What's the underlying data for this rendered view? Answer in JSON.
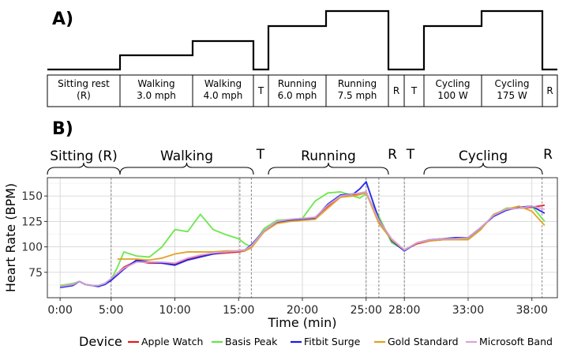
{
  "panel_a": {
    "label": "A)",
    "stages": [
      "Sitting rest\n(R)",
      "Walking\n3.0 mph",
      "Walking\n4.0 mph",
      "T",
      "Running\n6.0 mph",
      "Running\n7.5 mph",
      "R",
      "T",
      "Cycling\n100 W",
      "Cycling\n175 W",
      "R"
    ],
    "intensity_levels": [
      0,
      1,
      2,
      0,
      3,
      4,
      0,
      0,
      3,
      4,
      0
    ]
  },
  "panel_b": {
    "label": "B)",
    "phases": [
      {
        "label": "Sitting (R)",
        "brace": true
      },
      {
        "label": "Walking",
        "brace": true
      },
      {
        "label": "T",
        "brace": false
      },
      {
        "label": "Running",
        "brace": true
      },
      {
        "label": "R",
        "brace": false
      },
      {
        "label": "T",
        "brace": false
      },
      {
        "label": "Cycling",
        "brace": true
      },
      {
        "label": "R",
        "brace": false
      }
    ]
  },
  "chart_data": {
    "type": "line",
    "xlabel": "Time (min)",
    "ylabel": "Heart Rate (BPM)",
    "xlim": [
      0,
      40
    ],
    "ylim": [
      50,
      168
    ],
    "x_tick_values": [
      1,
      5,
      10,
      15,
      20,
      25,
      28,
      33,
      38
    ],
    "x_tick_labels": [
      "0:00",
      "5:00",
      "10:00",
      "15:00",
      "20:00",
      "25:00",
      "28:00",
      "33:00",
      "38:00"
    ],
    "y_ticks": [
      75,
      100,
      125,
      150
    ],
    "stage_boundaries": [
      5,
      15.1,
      16,
      25,
      26,
      28,
      38.8
    ],
    "grid": true,
    "legend_title": "Device",
    "legend_position": "bottom",
    "series": [
      {
        "name": "Apple Watch",
        "color": "#e41a1c",
        "x": [
          1,
          1.5,
          2,
          2.5,
          3,
          3.5,
          4,
          4.5,
          5,
          6,
          7,
          8,
          9,
          10,
          11,
          12,
          13,
          14,
          15,
          15.5,
          16,
          17,
          18,
          19,
          20,
          21,
          22,
          23,
          24,
          24.5,
          25,
          26,
          27,
          28,
          29,
          30,
          31,
          32,
          33,
          34,
          35,
          36,
          37,
          38,
          39
        ],
        "y": [
          61,
          62,
          63,
          66,
          63,
          62,
          62,
          64,
          68,
          80,
          86,
          84,
          84,
          83,
          88,
          91,
          93,
          94,
          95,
          96,
          101,
          115,
          124,
          126,
          127,
          129,
          140,
          149,
          151,
          152,
          154,
          125,
          107,
          97,
          103,
          106,
          107,
          108,
          108,
          118,
          131,
          137,
          138,
          139,
          141
        ]
      },
      {
        "name": "Basis Peak",
        "color": "#66e545",
        "x": [
          1,
          1.5,
          2,
          2.5,
          3,
          3.5,
          4,
          4.5,
          5,
          5.5,
          6,
          7,
          8,
          9,
          10,
          11,
          12,
          13,
          14,
          15,
          15.5,
          16,
          17,
          18,
          19,
          20,
          21,
          22,
          23,
          24,
          24.5,
          25,
          26,
          27,
          28,
          29,
          30,
          31,
          32,
          33,
          34,
          35,
          36,
          37,
          38,
          39
        ],
        "y": [
          62,
          63,
          64,
          66,
          63,
          62,
          62,
          64,
          68,
          80,
          95,
          91,
          90,
          100,
          117,
          115,
          132,
          117,
          112,
          108,
          103,
          100,
          118,
          126,
          127,
          128,
          145,
          153,
          154,
          150,
          148,
          152,
          130,
          104,
          97,
          104,
          107,
          107,
          108,
          108,
          118,
          131,
          138,
          138,
          140,
          125
        ]
      },
      {
        "name": "Fitbit Surge",
        "color": "#1a1aeb",
        "x": [
          1,
          1.5,
          2,
          2.5,
          3,
          3.5,
          4,
          4.5,
          5,
          6,
          7,
          8,
          9,
          10,
          11,
          12,
          13,
          14,
          15,
          15.5,
          16,
          17,
          18,
          19,
          20,
          21,
          22,
          23,
          24,
          24.5,
          25,
          26,
          27,
          28,
          29,
          30,
          31,
          32,
          33,
          34,
          35,
          36,
          37,
          38,
          39
        ],
        "y": [
          60,
          61,
          62,
          66,
          63,
          62,
          61,
          63,
          67,
          78,
          87,
          85,
          84,
          82,
          87,
          90,
          93,
          95,
          96,
          97,
          102,
          116,
          124,
          126,
          127,
          128,
          142,
          151,
          152,
          157,
          164,
          127,
          106,
          96,
          104,
          107,
          108,
          109,
          109,
          119,
          130,
          136,
          139,
          140,
          133
        ]
      },
      {
        "name": "Gold Standard",
        "color": "#e0a020",
        "x": [
          5.5,
          6,
          7,
          8,
          9,
          10,
          11,
          12,
          13,
          14,
          15,
          15.5,
          16,
          17,
          18,
          19,
          20,
          21,
          22,
          23,
          24,
          25,
          26,
          27,
          28,
          29,
          30,
          31,
          32,
          33,
          34,
          35,
          36,
          37,
          38,
          39
        ],
        "y": [
          88,
          88,
          88,
          87,
          89,
          93,
          95,
          95,
          95,
          96,
          96,
          96,
          99,
          115,
          123,
          125,
          126,
          127,
          138,
          149,
          150,
          153,
          123,
          107,
          97,
          104,
          106,
          107,
          107,
          107,
          117,
          132,
          137,
          140,
          135,
          121
        ]
      },
      {
        "name": "Microsoft Band",
        "color": "#d9a3d9",
        "x": [
          1,
          1.5,
          2,
          2.5,
          3,
          3.5,
          4,
          4.5,
          5,
          6,
          7,
          8,
          9,
          10,
          11,
          12,
          13,
          14,
          15,
          15.5,
          16,
          17,
          18,
          19,
          20,
          21,
          22,
          23,
          24,
          24.5,
          25,
          26,
          27,
          28,
          29,
          30,
          31,
          32,
          33,
          34,
          35,
          36,
          37,
          38,
          39
        ],
        "y": [
          61,
          62,
          63,
          66,
          63,
          62,
          62,
          64,
          69,
          79,
          85,
          85,
          85,
          84,
          89,
          92,
          94,
          95,
          96,
          97,
          101,
          116,
          125,
          127,
          128,
          129,
          141,
          150,
          152,
          153,
          154,
          126,
          108,
          97,
          104,
          107,
          108,
          108,
          109,
          119,
          131,
          137,
          138,
          140,
          137
        ]
      }
    ]
  }
}
